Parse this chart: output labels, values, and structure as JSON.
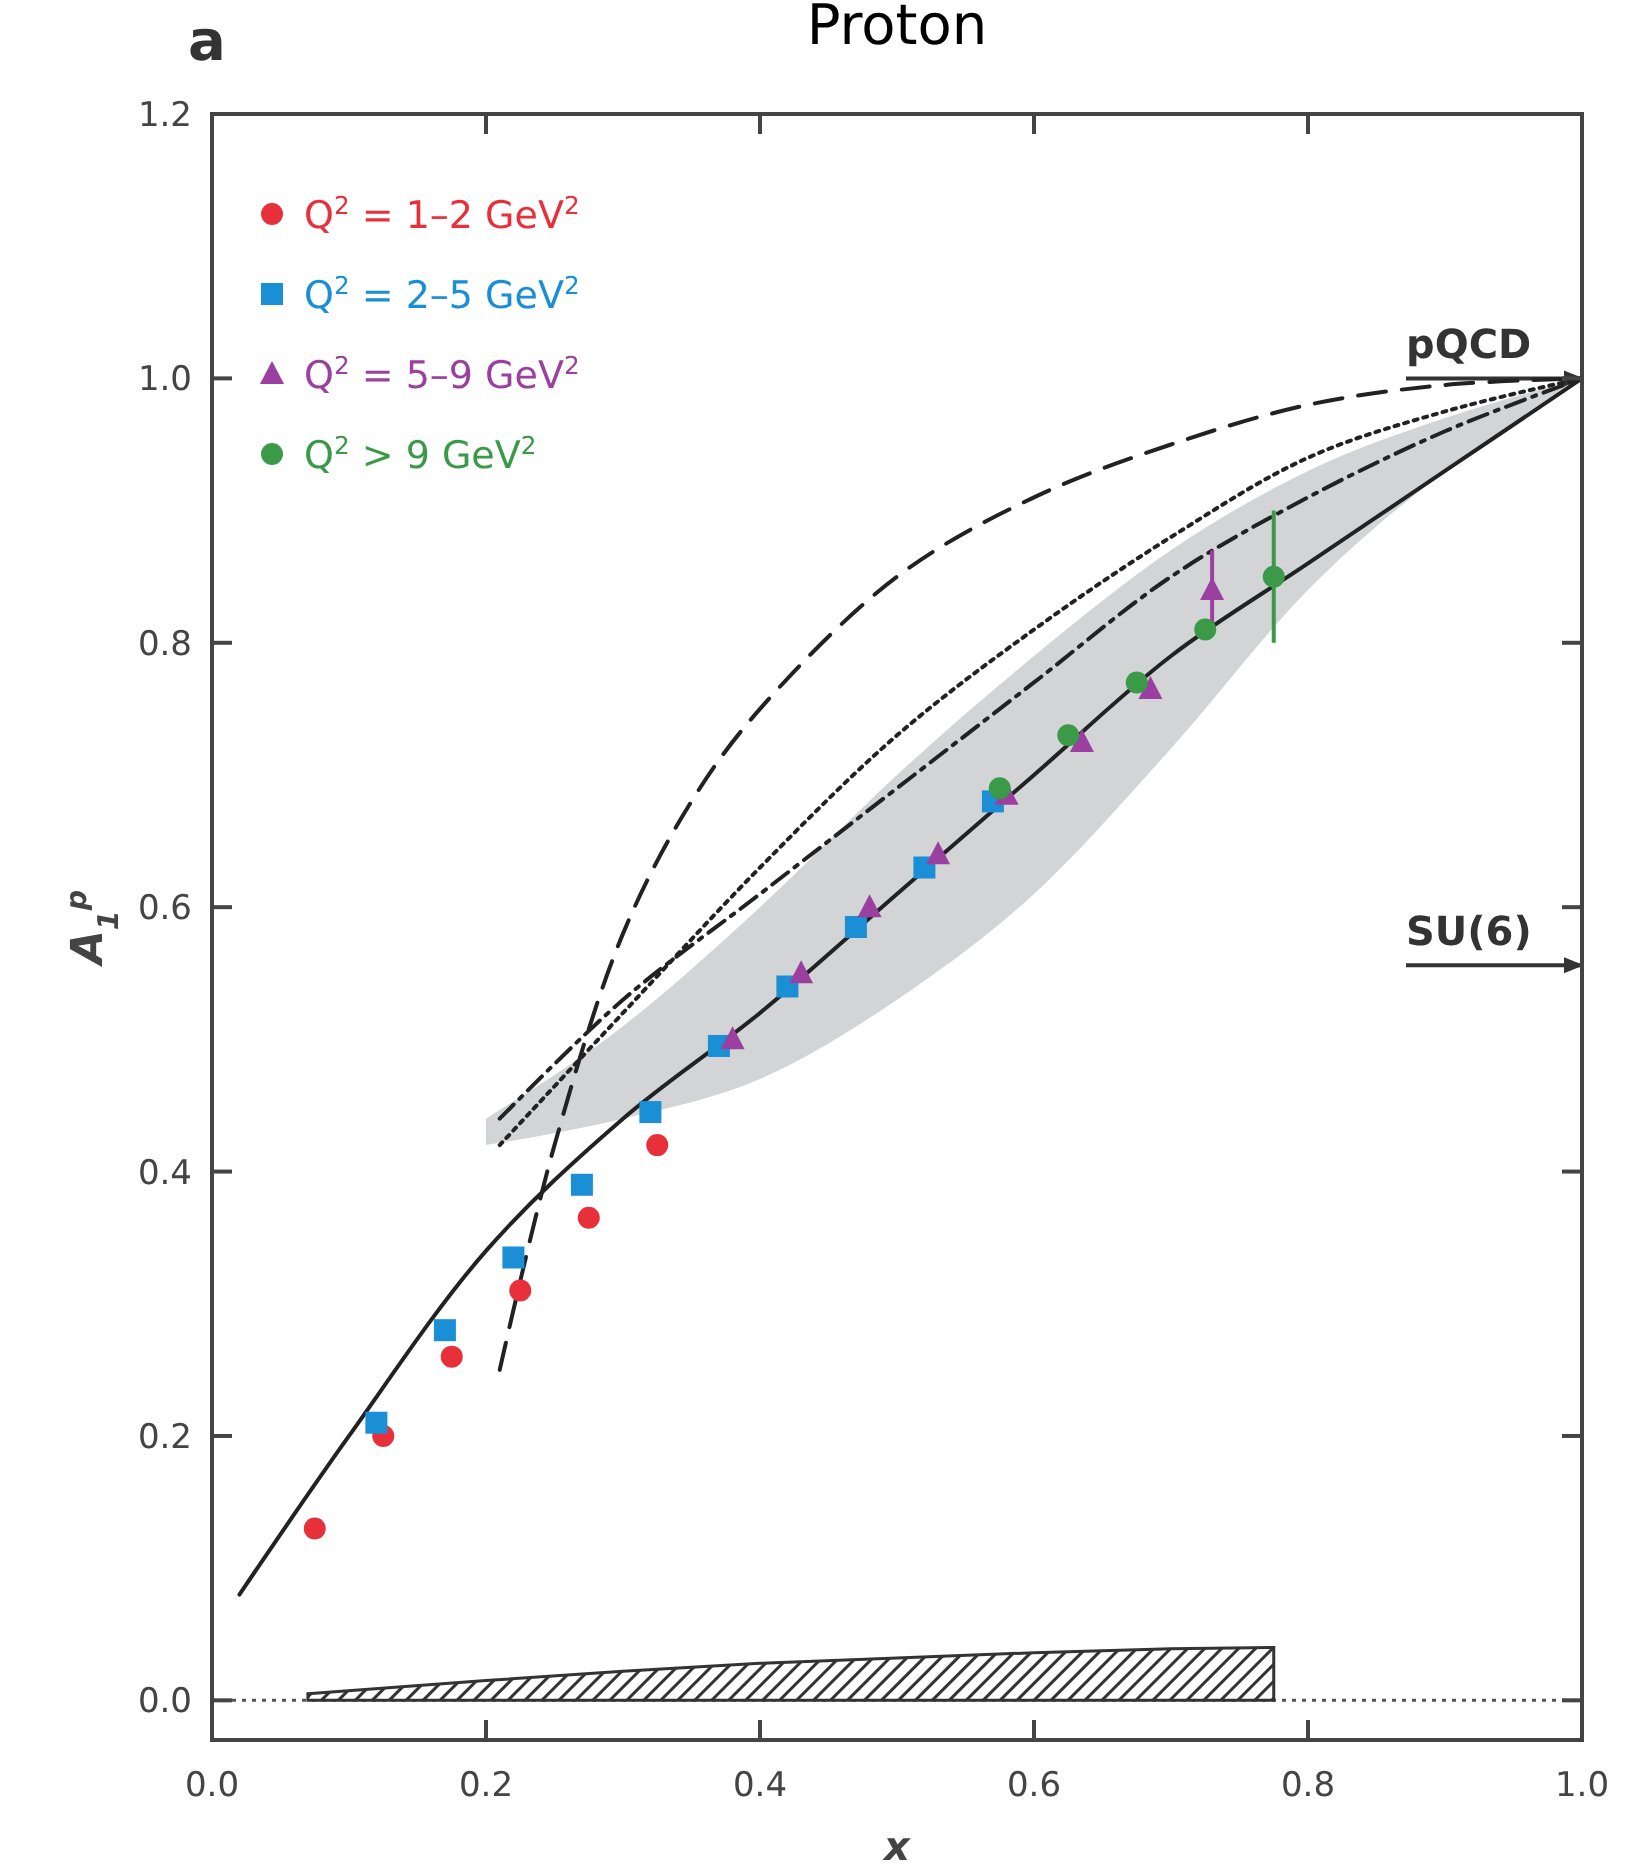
{
  "chart_data": {
    "type": "scatter",
    "title": "Proton",
    "xlabel": "x",
    "ylabel": "A$_{1}$$^{p}$",
    "annotations": [
      "a"
    ],
    "xlim": [
      0,
      1
    ],
    "ylim": [
      -0.03,
      1.2
    ],
    "xticks": [
      {
        "value": 0,
        "label": "0.0"
      },
      {
        "value": 0.2,
        "label": "0.2"
      },
      {
        "value": 0.4,
        "label": "0.4"
      },
      {
        "value": 0.6,
        "label": "0.6"
      },
      {
        "value": 0.8,
        "label": "0.8"
      },
      {
        "value": 1,
        "label": "1.0"
      }
    ],
    "yticks": [
      {
        "value": 0,
        "label": "0.0"
      },
      {
        "value": 0.2,
        "label": "0.2"
      },
      {
        "value": 0.4,
        "label": "0.4"
      },
      {
        "value": 0.6,
        "label": "0.6"
      },
      {
        "value": 0.8,
        "label": "0.8"
      },
      {
        "value": 1,
        "label": "1.0"
      },
      {
        "value": 1.2,
        "label": "1.2"
      }
    ],
    "grid": false,
    "legend": "top left",
    "ref_lines": [
      {
        "axis": "y",
        "value": 1.0,
        "label": "pQCD",
        "color": "#333333"
      },
      {
        "axis": "y",
        "value": 0.556,
        "label": "SU(6)",
        "color": "#333333"
      },
      {
        "axis": "y",
        "value": 0,
        "color": "#555555",
        "line_style": "dotted"
      }
    ],
    "series": [
      {
        "type": "area",
        "color": "#333333",
        "x": [
          0.07,
          0.2,
          0.3,
          0.4,
          0.5,
          0.6,
          0.7,
          0.775
        ],
        "values": [
          0.005,
          0.015,
          0.022,
          0.028,
          0.032,
          0.036,
          0.039,
          0.04
        ]
      },
      {
        "type": "line",
        "color": "#222222",
        "line_style": "dashed",
        "x": [
          0.21,
          0.25,
          0.3,
          0.35,
          0.4,
          0.5,
          0.6,
          0.7,
          0.8,
          0.9,
          1.0
        ],
        "values": [
          0.25,
          0.42,
          0.58,
          0.68,
          0.75,
          0.85,
          0.91,
          0.95,
          0.98,
          0.995,
          1.0
        ]
      },
      {
        "type": "line",
        "color": "#222222",
        "line_style": "dotted",
        "x": [
          0.21,
          0.3,
          0.4,
          0.5,
          0.6,
          0.7,
          0.8,
          0.9,
          1.0
        ],
        "values": [
          0.42,
          0.52,
          0.63,
          0.73,
          0.81,
          0.88,
          0.94,
          0.975,
          1.0
        ]
      },
      {
        "type": "line",
        "color": "#222222",
        "line_style": "dashdot",
        "x": [
          0.21,
          0.3,
          0.4,
          0.5,
          0.6,
          0.7,
          0.8,
          0.9,
          1.0
        ],
        "values": [
          0.44,
          0.53,
          0.61,
          0.69,
          0.77,
          0.85,
          0.91,
          0.96,
          1.0
        ]
      },
      {
        "type": "line",
        "color": "#222222",
        "line_style": "solid",
        "x": [
          0.02,
          0.1,
          0.2,
          0.3,
          0.4,
          0.5,
          0.6,
          0.7,
          0.8,
          0.9,
          1.0
        ],
        "values": [
          0.08,
          0.2,
          0.34,
          0.44,
          0.52,
          0.61,
          0.7,
          0.79,
          0.86,
          0.93,
          1.0
        ],
        "lower": [
          null,
          null,
          0.42,
          0.44,
          0.47,
          0.53,
          0.61,
          0.72,
          0.84,
          0.93,
          1.0
        ],
        "upper": [
          null,
          null,
          0.44,
          0.51,
          0.6,
          0.7,
          0.79,
          0.87,
          0.93,
          0.97,
          1.0
        ]
      },
      {
        "name": "Q$^{2}$ = 1–2 GeV$^{2}$",
        "color": "#e8303a",
        "marker": "circle",
        "x": [
          0.075,
          0.125,
          0.175,
          0.225,
          0.275,
          0.325
        ],
        "values": [
          0.13,
          0.2,
          0.26,
          0.31,
          0.365,
          0.42
        ]
      },
      {
        "name": "Q$^{2}$ = 2–5 GeV$^{2}$",
        "color": "#1a8fd6",
        "marker": "square",
        "x": [
          0.12,
          0.17,
          0.22,
          0.27,
          0.32,
          0.37,
          0.42,
          0.47,
          0.52,
          0.57
        ],
        "values": [
          0.21,
          0.28,
          0.335,
          0.39,
          0.445,
          0.495,
          0.54,
          0.585,
          0.63,
          0.68
        ]
      },
      {
        "name": "Q$^{2}$ = 5–9 GeV$^{2}$",
        "color": "#9b3fa0",
        "marker": "triangle",
        "x": [
          0.38,
          0.43,
          0.48,
          0.53,
          0.58,
          0.635,
          0.685,
          0.73
        ],
        "values": [
          0.5,
          0.55,
          0.6,
          0.64,
          0.685,
          0.725,
          0.765,
          0.84
        ],
        "errors": [
          null,
          null,
          null,
          null,
          null,
          null,
          null,
          0.03
        ]
      },
      {
        "name": "Q$^{2}$ > 9 GeV$^{2}$",
        "color": "#3a9a48",
        "marker": "circle",
        "x": [
          0.575,
          0.625,
          0.675,
          0.725,
          0.775
        ],
        "values": [
          0.69,
          0.73,
          0.77,
          0.81,
          0.85
        ],
        "errors": [
          null,
          null,
          null,
          null,
          0.05
        ]
      }
    ]
  }
}
